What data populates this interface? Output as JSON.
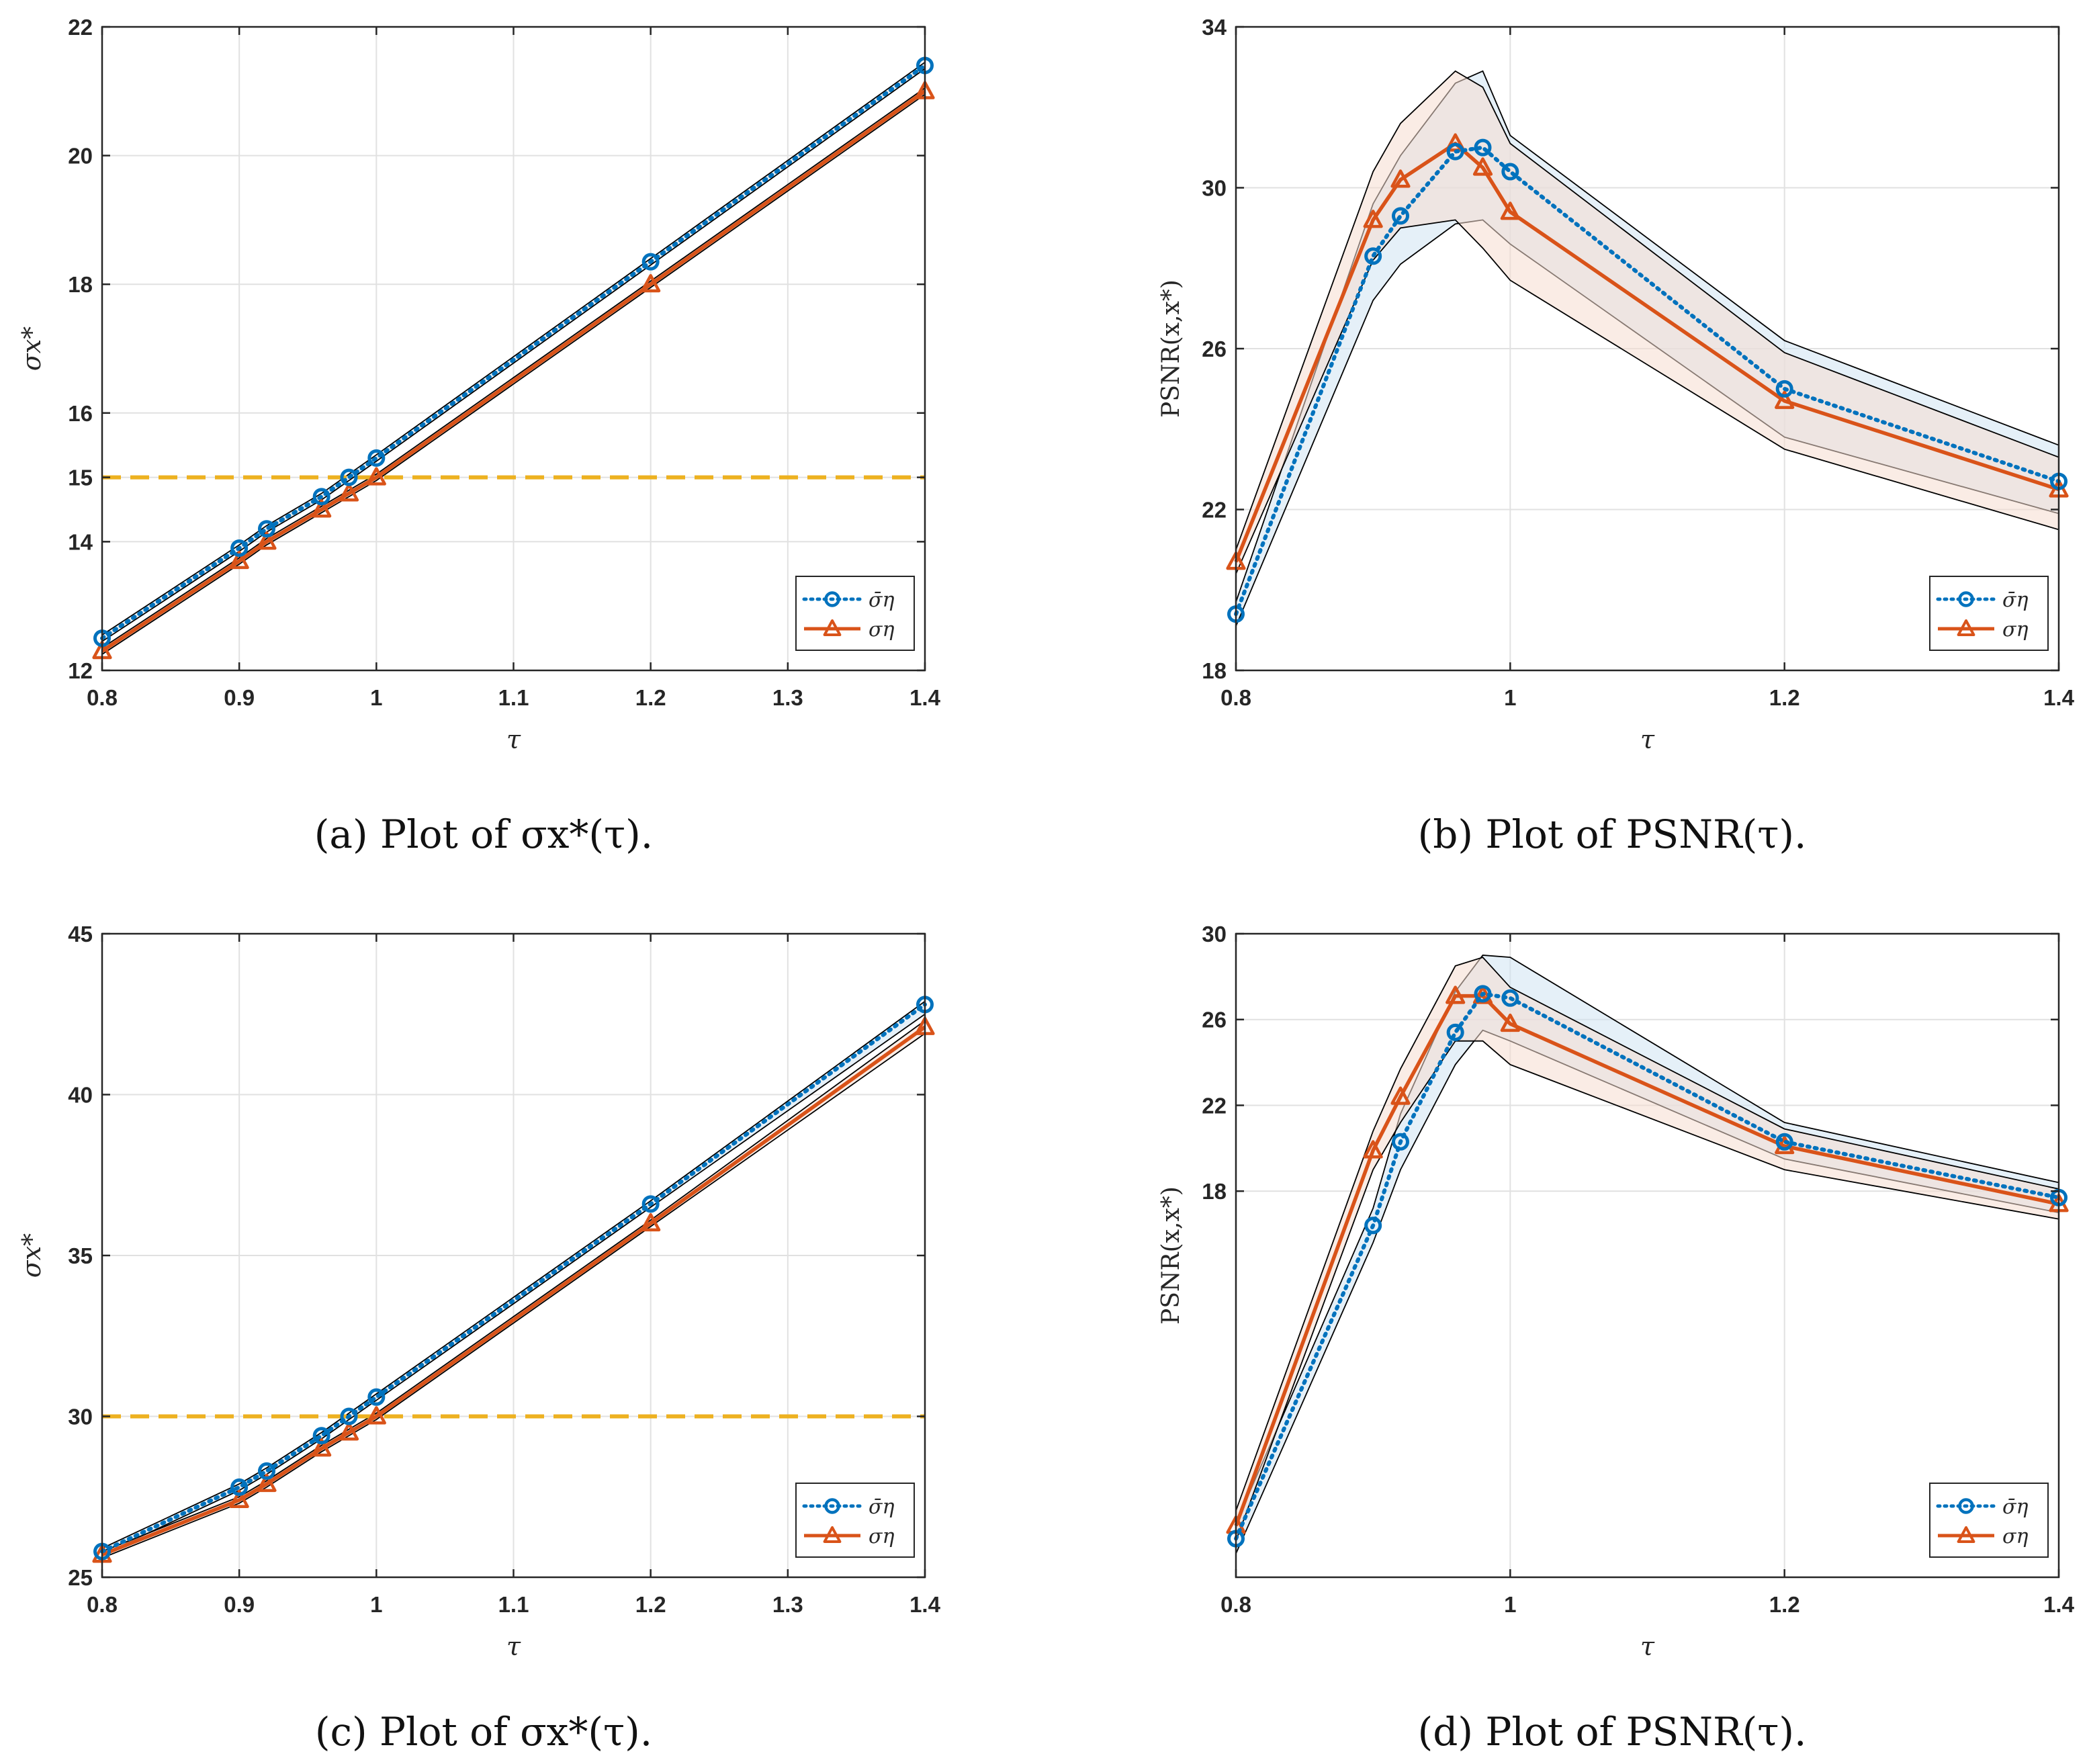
{
  "colors": {
    "blue": "#0072BD",
    "orange": "#D95319",
    "reference": "#EDB120",
    "blue_fill": "#cfe3f3",
    "orange_fill": "#f6dccf",
    "overlap_fill": "#d9d9d9"
  },
  "chart_data": [
    {
      "id": "a",
      "type": "line",
      "caption": "(a) Plot of σx*(τ).",
      "xlabel": "τ",
      "ylabel": "σx*",
      "xlim": [
        0.8,
        1.4
      ],
      "ylim": [
        12,
        22
      ],
      "xticks": [
        0.8,
        0.9,
        1,
        1.1,
        1.2,
        1.3,
        1.4
      ],
      "xtick_labels": [
        "0.8",
        "0.9",
        "1",
        "1.1",
        "1.2",
        "1.3",
        "1.4"
      ],
      "yticks": [
        12,
        14,
        15,
        16,
        18,
        20,
        22
      ],
      "ytick_labels": [
        "12",
        "14",
        "15",
        "16",
        "18",
        "20",
        "22"
      ],
      "grid": true,
      "reference_line": 15,
      "x": [
        0.8,
        0.9,
        0.92,
        0.96,
        0.98,
        1.0,
        1.2,
        1.4
      ],
      "series": [
        {
          "name": "σ̄η",
          "style": "dotted-circle",
          "values": [
            12.5,
            13.9,
            14.2,
            14.7,
            15.0,
            15.3,
            18.35,
            21.4
          ],
          "band": [
            [
              12.45,
              12.55
            ],
            [
              13.85,
              13.95
            ],
            [
              14.15,
              14.25
            ],
            [
              14.65,
              14.75
            ],
            [
              14.95,
              15.05
            ],
            [
              15.25,
              15.35
            ],
            [
              18.3,
              18.4
            ],
            [
              21.35,
              21.45
            ]
          ]
        },
        {
          "name": "ση",
          "style": "solid-triangle",
          "values": [
            12.3,
            13.7,
            14.0,
            14.5,
            14.75,
            15.0,
            18.0,
            21.0
          ],
          "band": [
            [
              12.25,
              12.35
            ],
            [
              13.65,
              13.75
            ],
            [
              13.95,
              14.05
            ],
            [
              14.45,
              14.55
            ],
            [
              14.7,
              14.8
            ],
            [
              14.95,
              15.05
            ],
            [
              17.95,
              18.05
            ],
            [
              20.95,
              21.05
            ]
          ]
        }
      ],
      "legend_position": "bottom-right"
    },
    {
      "id": "b",
      "type": "line",
      "caption": "(b) Plot of PSNR(τ).",
      "xlabel": "τ",
      "ylabel": "PSNR(x,x*)",
      "xlim": [
        0.8,
        1.4
      ],
      "ylim": [
        18,
        34
      ],
      "xticks": [
        0.8,
        1,
        1.2,
        1.4
      ],
      "xtick_labels": [
        "0.8",
        "1",
        "1.2",
        "1.4"
      ],
      "yticks": [
        18,
        22,
        26,
        30,
        34
      ],
      "ytick_labels": [
        "18",
        "22",
        "26",
        "30",
        "34"
      ],
      "grid": true,
      "x": [
        0.8,
        0.9,
        0.92,
        0.96,
        0.98,
        1.0,
        1.2,
        1.4
      ],
      "series": [
        {
          "name": "σ̄η",
          "style": "dotted-circle",
          "values": [
            19.4,
            28.3,
            29.3,
            30.9,
            31.0,
            30.4,
            25.0,
            22.7
          ],
          "band": [
            [
              19.1,
              19.7
            ],
            [
              27.2,
              29.6
            ],
            [
              28.1,
              30.8
            ],
            [
              29.1,
              32.6
            ],
            [
              29.2,
              32.9
            ],
            [
              28.6,
              31.3
            ],
            [
              23.8,
              26.2
            ],
            [
              21.9,
              23.6
            ]
          ]
        },
        {
          "name": "ση",
          "style": "solid-triangle",
          "values": [
            20.7,
            29.2,
            30.2,
            31.1,
            30.5,
            29.4,
            24.7,
            22.5
          ],
          "band": [
            [
              20.4,
              21.0
            ],
            [
              28.2,
              30.4
            ],
            [
              29.0,
              31.6
            ],
            [
              29.2,
              32.9
            ],
            [
              28.5,
              32.5
            ],
            [
              27.7,
              31.1
            ],
            [
              23.5,
              25.9
            ],
            [
              21.5,
              23.3
            ]
          ]
        }
      ],
      "legend_position": "bottom-right"
    },
    {
      "id": "c",
      "type": "line",
      "caption": "(c) Plot of σx*(τ).",
      "xlabel": "τ",
      "ylabel": "σx*",
      "xlim": [
        0.8,
        1.4
      ],
      "ylim": [
        25,
        45
      ],
      "xticks": [
        0.8,
        0.9,
        1,
        1.1,
        1.2,
        1.3,
        1.4
      ],
      "xtick_labels": [
        "0.8",
        "0.9",
        "1",
        "1.1",
        "1.2",
        "1.3",
        "1.4"
      ],
      "yticks": [
        25,
        30,
        35,
        40,
        45
      ],
      "ytick_labels": [
        "25",
        "30",
        "35",
        "40",
        "45"
      ],
      "grid": true,
      "reference_line": 30,
      "x": [
        0.8,
        0.9,
        0.92,
        0.96,
        0.98,
        1.0,
        1.2,
        1.4
      ],
      "series": [
        {
          "name": "σ̄η",
          "style": "dotted-circle",
          "values": [
            25.8,
            27.8,
            28.3,
            29.4,
            30.0,
            30.6,
            36.6,
            42.8
          ],
          "band": [
            [
              25.7,
              25.9
            ],
            [
              27.7,
              27.9
            ],
            [
              28.2,
              28.4
            ],
            [
              29.3,
              29.5
            ],
            [
              29.9,
              30.1
            ],
            [
              30.5,
              30.7
            ],
            [
              36.5,
              36.7
            ],
            [
              42.5,
              42.9
            ]
          ]
        },
        {
          "name": "ση",
          "style": "solid-triangle",
          "values": [
            25.7,
            27.4,
            27.9,
            29.0,
            29.5,
            30.0,
            36.0,
            42.1
          ],
          "band": [
            [
              25.6,
              25.8
            ],
            [
              27.3,
              27.5
            ],
            [
              27.8,
              28.0
            ],
            [
              28.9,
              29.1
            ],
            [
              29.4,
              29.6
            ],
            [
              29.9,
              30.1
            ],
            [
              35.9,
              36.1
            ],
            [
              41.9,
              42.3
            ]
          ]
        }
      ],
      "legend_position": "bottom-right"
    },
    {
      "id": "d",
      "type": "line",
      "caption": "(d) Plot of PSNR(τ).",
      "xlabel": "τ",
      "ylabel": "PSNR(x,x*)",
      "xlim": [
        0.8,
        1.4
      ],
      "ylim": [
        0,
        30
      ],
      "xticks": [
        0.8,
        1,
        1.2,
        1.4
      ],
      "xtick_labels": [
        "0.8",
        "1",
        "1.2",
        "1.4"
      ],
      "yticks": [
        18,
        22,
        26,
        30
      ],
      "ytick_labels": [
        "18",
        "22",
        "26",
        "30"
      ],
      "grid": true,
      "x": [
        0.8,
        0.9,
        0.92,
        0.96,
        0.98,
        1.0,
        1.2,
        1.4
      ],
      "series": [
        {
          "name": "σ̄η",
          "style": "dotted-circle",
          "values": [
            1.8,
            16.4,
            20.3,
            25.4,
            27.2,
            27.0,
            20.3,
            17.7
          ],
          "band": [
            [
              1.1,
              2.5
            ],
            [
              15.6,
              17.2
            ],
            [
              19.0,
              21.6
            ],
            [
              23.9,
              27.3
            ],
            [
              25.5,
              29.0
            ],
            [
              25.0,
              28.9
            ],
            [
              19.5,
              21.2
            ],
            [
              17.0,
              18.4
            ]
          ]
        },
        {
          "name": "ση",
          "style": "solid-triangle",
          "values": [
            2.4,
            19.9,
            22.4,
            27.1,
            27.1,
            25.8,
            20.1,
            17.4
          ],
          "band": [
            [
              1.7,
              3.1
            ],
            [
              19.0,
              20.8
            ],
            [
              21.2,
              23.7
            ],
            [
              25.0,
              28.5
            ],
            [
              25.0,
              28.9
            ],
            [
              23.9,
              27.5
            ],
            [
              19.0,
              20.9
            ],
            [
              16.7,
              18.1
            ]
          ]
        }
      ],
      "legend_position": "bottom-right"
    }
  ]
}
